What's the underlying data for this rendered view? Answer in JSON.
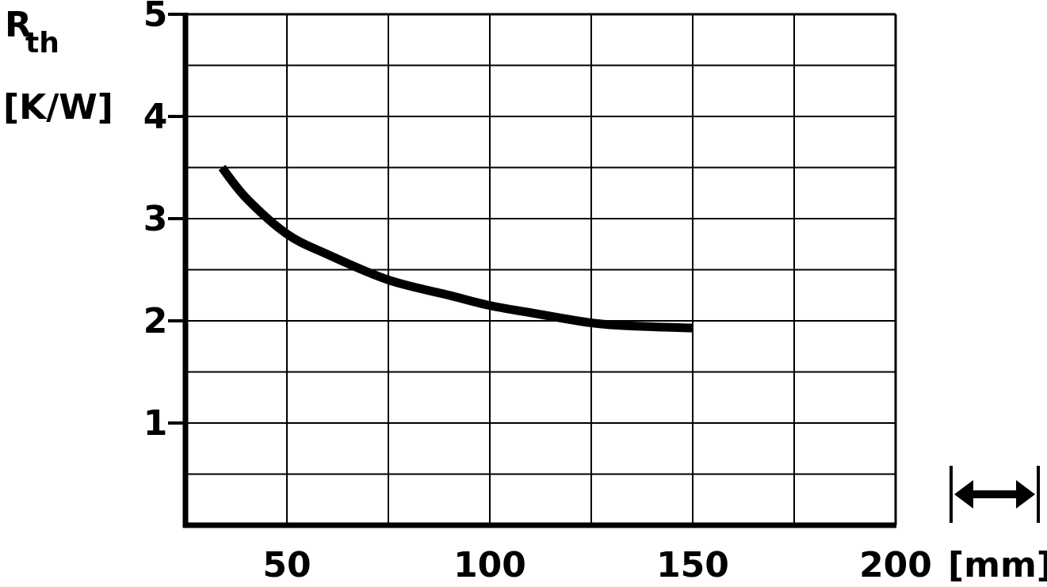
{
  "chart_data": {
    "type": "line",
    "ylabel_main": "R",
    "ylabel_sub": "th",
    "yunit": "[K/W]",
    "xunit": "[mm]",
    "xlim": [
      25,
      200
    ],
    "ylim": [
      0,
      5
    ],
    "x_ticks": [
      "50",
      "100",
      "150",
      "200"
    ],
    "x_tick_values": [
      50,
      100,
      150,
      200
    ],
    "y_ticks": [
      "1",
      "2",
      "3",
      "4",
      "5"
    ],
    "y_tick_values": [
      1,
      2,
      3,
      4,
      5
    ],
    "grid": true,
    "series": [
      {
        "x": [
          34,
          40,
          50,
          60,
          75,
          90,
          100,
          110,
          125,
          135,
          150
        ],
        "values": [
          3.5,
          3.2,
          2.85,
          2.65,
          2.4,
          2.25,
          2.15,
          2.08,
          1.98,
          1.95,
          1.93
        ]
      }
    ]
  },
  "icon": "length-dimension-arrow-icon",
  "colors": {
    "line": "#000000",
    "grid": "#000000",
    "background": "#ffffff"
  }
}
